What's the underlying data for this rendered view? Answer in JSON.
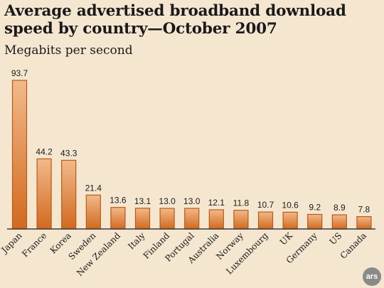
{
  "chart_data": {
    "type": "bar",
    "title": "Average advertised broadband download speed by country—October 2007",
    "subtitle": "Megabits per second",
    "xlabel": "",
    "ylabel": "",
    "ylim": [
      0,
      100
    ],
    "grid": false,
    "categories": [
      "Japan",
      "France",
      "Korea",
      "Sweden",
      "New Zealand",
      "Italy",
      "Finland",
      "Portugal",
      "Australia",
      "Norway",
      "Luxembourg",
      "UK",
      "Germany",
      "US",
      "Canada"
    ],
    "values": [
      93.7,
      44.2,
      43.3,
      21.4,
      13.6,
      13.1,
      13.0,
      13.0,
      12.1,
      11.8,
      10.7,
      10.6,
      9.2,
      8.9,
      7.8
    ],
    "value_labels": [
      "93.7",
      "44.2",
      "43.3",
      "21.4",
      "13.6",
      "13.1",
      "13.0",
      "13.0",
      "12.1",
      "11.8",
      "10.7",
      "10.6",
      "9.2",
      "8.9",
      "7.8"
    ],
    "colors": {
      "bar_top": "#f2b98a",
      "bar_bottom": "#d2691e",
      "bar_border": "#b85a17",
      "axis": "#3a3a3a"
    }
  },
  "logo": {
    "text": "ars"
  }
}
